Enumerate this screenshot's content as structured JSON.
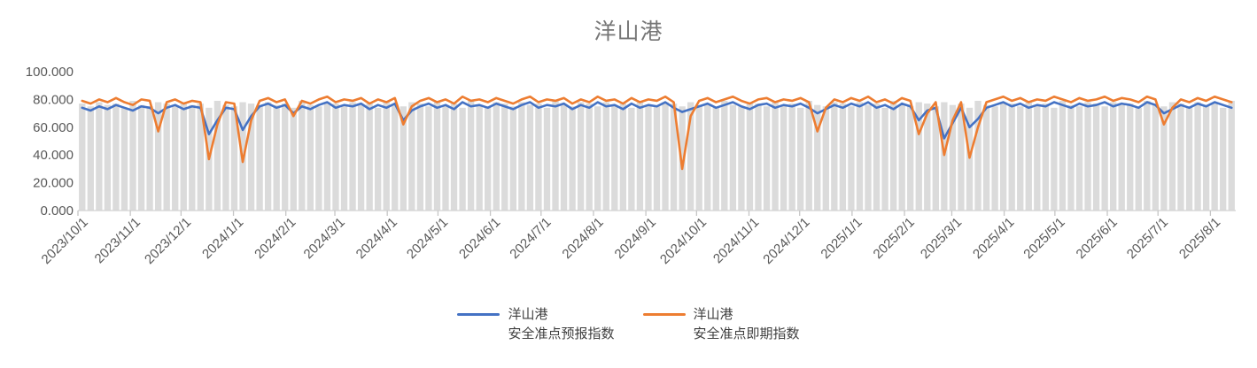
{
  "chart": {
    "title": "洋山港"
  },
  "legend": {
    "items": [
      {
        "line1": "洋山港",
        "line2": "安全准点预报指数",
        "color": "#4472C4"
      },
      {
        "line1": "洋山港",
        "line2": "安全准点即期指数",
        "color": "#ED7D31"
      }
    ]
  },
  "colors": {
    "axis_text": "#595959",
    "axis_line": "#d2d2d2",
    "tick_mark": "#c6c6c6",
    "bar_fill": "#dbdbdb"
  },
  "chart_data": {
    "type": "line",
    "title": "洋山港",
    "xlabel": "",
    "ylabel": "",
    "ylim": [
      0,
      100
    ],
    "y_ticks": [
      0,
      20,
      40,
      60,
      80,
      100
    ],
    "y_tick_decimals": 3,
    "grid": false,
    "legend_position": "bottom",
    "n_points": 137,
    "x_labels": [
      "2023/10/1",
      "2023/11/1",
      "2023/12/1",
      "2024/1/1",
      "2024/2/1",
      "2024/3/1",
      "2024/4/1",
      "2024/5/1",
      "2024/6/1",
      "2024/7/1",
      "2024/8/1",
      "2024/9/1",
      "2024/10/1",
      "2024/11/1",
      "2024/12/1",
      "2025/1/1",
      "2025/2/1",
      "2025/3/1",
      "2025/4/1",
      "2025/5/1",
      "2025/6/1",
      "2025/7/1",
      "2025/8/1"
    ],
    "x_tick_indices": [
      0,
      6.2,
      12.2,
      18.4,
      24.6,
      30.4,
      36.6,
      42.6,
      48.8,
      54.8,
      61.0,
      67.2,
      73.2,
      79.4,
      85.4,
      91.6,
      97.8,
      103.4,
      109.6,
      115.6,
      121.8,
      127.8,
      134.0
    ],
    "series": [
      {
        "name": "洋山港 安全准点预报指数",
        "color": "#4472C4",
        "values": [
          74,
          72,
          75,
          73,
          76,
          74,
          72,
          75,
          74,
          70,
          74,
          76,
          73,
          75,
          74,
          55,
          65,
          74,
          73,
          58,
          68,
          75,
          77,
          74,
          76,
          70,
          75,
          73,
          76,
          78,
          74,
          76,
          75,
          77,
          73,
          76,
          74,
          77,
          65,
          72,
          75,
          77,
          74,
          76,
          73,
          78,
          75,
          76,
          74,
          77,
          75,
          73,
          76,
          78,
          74,
          76,
          75,
          77,
          73,
          76,
          74,
          78,
          75,
          76,
          73,
          77,
          74,
          76,
          75,
          78,
          74,
          71,
          73,
          75,
          77,
          74,
          76,
          78,
          75,
          73,
          76,
          77,
          74,
          76,
          75,
          77,
          74,
          70,
          73,
          76,
          74,
          77,
          75,
          78,
          74,
          76,
          73,
          77,
          75,
          65,
          72,
          74,
          52,
          63,
          74,
          60,
          66,
          74,
          76,
          78,
          75,
          77,
          74,
          76,
          75,
          78,
          76,
          74,
          77,
          75,
          76,
          78,
          75,
          77,
          76,
          74,
          78,
          76,
          70,
          73,
          76,
          74,
          77,
          75,
          78,
          76,
          74
        ]
      },
      {
        "name": "洋山港 安全准点即期指数",
        "color": "#ED7D31",
        "values": [
          79,
          77,
          80,
          78,
          81,
          78,
          76,
          80,
          79,
          57,
          78,
          80,
          77,
          79,
          78,
          37,
          62,
          78,
          77,
          35,
          65,
          79,
          81,
          78,
          80,
          68,
          79,
          77,
          80,
          82,
          78,
          80,
          79,
          81,
          77,
          80,
          78,
          81,
          62,
          75,
          79,
          81,
          78,
          80,
          77,
          82,
          79,
          80,
          78,
          81,
          79,
          77,
          80,
          82,
          78,
          80,
          79,
          81,
          77,
          80,
          78,
          82,
          79,
          80,
          77,
          81,
          78,
          80,
          79,
          82,
          78,
          30,
          68,
          79,
          81,
          78,
          80,
          82,
          79,
          77,
          80,
          81,
          78,
          80,
          79,
          81,
          78,
          57,
          74,
          80,
          78,
          81,
          79,
          82,
          78,
          80,
          77,
          81,
          79,
          55,
          70,
          78,
          40,
          65,
          78,
          38,
          60,
          78,
          80,
          82,
          79,
          81,
          78,
          80,
          79,
          82,
          80,
          78,
          81,
          79,
          80,
          82,
          79,
          81,
          80,
          78,
          82,
          80,
          62,
          74,
          80,
          78,
          81,
          79,
          82,
          80,
          78
        ]
      }
    ],
    "background_bars": {
      "color": "#dbdbdb",
      "values": [
        77,
        75,
        78,
        76,
        77,
        74,
        79,
        76,
        75,
        78,
        77,
        75,
        78,
        76,
        77,
        74,
        79,
        76,
        75,
        78,
        77,
        75,
        78,
        76,
        77,
        74,
        79,
        76,
        75,
        78,
        77,
        75,
        78,
        76,
        77,
        74,
        79,
        76,
        75,
        78,
        77,
        75,
        78,
        76,
        77,
        74,
        79,
        76,
        75,
        78,
        77,
        75,
        78,
        76,
        77,
        74,
        79,
        76,
        75,
        78,
        77,
        75,
        78,
        76,
        77,
        74,
        79,
        76,
        75,
        78,
        77,
        75,
        78,
        76,
        77,
        74,
        79,
        76,
        75,
        78,
        77,
        75,
        78,
        76,
        77,
        74,
        79,
        76,
        75,
        78,
        77,
        75,
        78,
        76,
        77,
        74,
        79,
        76,
        75,
        78,
        77,
        75,
        78,
        76,
        77,
        74,
        79,
        76,
        75,
        78,
        77,
        75,
        78,
        76,
        77,
        74,
        79,
        76,
        75,
        78,
        77,
        75,
        78,
        76,
        77,
        74,
        79,
        76,
        75,
        78,
        77,
        75,
        78,
        76,
        77,
        74,
        79
      ]
    }
  }
}
